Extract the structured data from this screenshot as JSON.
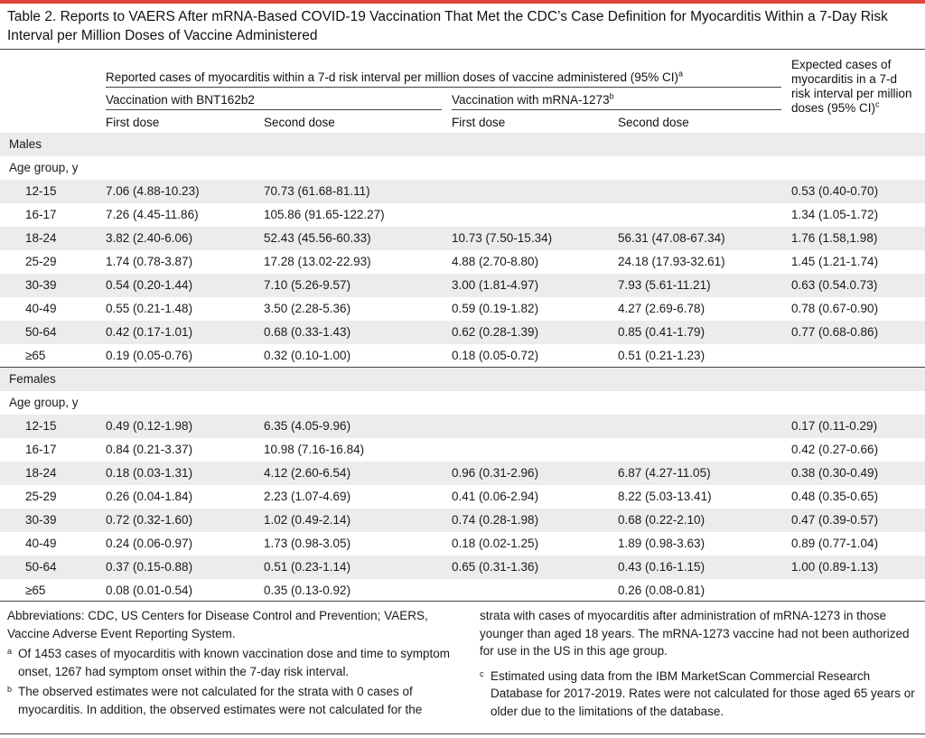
{
  "title": "Table 2. Reports to VAERS After mRNA-Based COVID-19 Vaccination That Met the CDC’s Case Definition for Myocarditis Within a 7-Day Risk Interval per Million Doses of Vaccine Administered",
  "header": {
    "reported_label": "Reported cases of myocarditis within a 7-d risk interval per million doses of vaccine administered (95% CI)",
    "reported_mark": "a",
    "bnt_label": "Vaccination with BNT162b2",
    "mrna_label": "Vaccination with mRNA-1273",
    "mrna_mark": "b",
    "first_dose": "First dose",
    "second_dose": "Second dose",
    "expected_label": "Expected cases of myocarditis in a 7-d risk interval per million doses (95% CI)",
    "expected_mark": "c"
  },
  "sections": [
    {
      "label": "Males",
      "sub": "Age group, y",
      "rows": [
        {
          "age": "12-15",
          "bnt1": "7.06 (4.88-10.23)",
          "bnt2": "70.73 (61.68-81.11)",
          "m1": "",
          "m2": "",
          "exp": "0.53 (0.40-0.70)"
        },
        {
          "age": "16-17",
          "bnt1": "7.26 (4.45-11.86)",
          "bnt2": "105.86 (91.65-122.27)",
          "m1": "",
          "m2": "",
          "exp": "1.34 (1.05-1.72)"
        },
        {
          "age": "18-24",
          "bnt1": "3.82 (2.40-6.06)",
          "bnt2": "52.43 (45.56-60.33)",
          "m1": "10.73 (7.50-15.34)",
          "m2": "56.31 (47.08-67.34)",
          "exp": "1.76 (1.58,1.98)"
        },
        {
          "age": "25-29",
          "bnt1": "1.74 (0.78-3.87)",
          "bnt2": "17.28 (13.02-22.93)",
          "m1": "4.88 (2.70-8.80)",
          "m2": "24.18 (17.93-32.61)",
          "exp": "1.45 (1.21-1.74)"
        },
        {
          "age": "30-39",
          "bnt1": "0.54 (0.20-1.44)",
          "bnt2": "7.10 (5.26-9.57)",
          "m1": "3.00 (1.81-4.97)",
          "m2": "7.93 (5.61-11.21)",
          "exp": "0.63 (0.54.0.73)"
        },
        {
          "age": "40-49",
          "bnt1": "0.55 (0.21-1.48)",
          "bnt2": "3.50 (2.28-5.36)",
          "m1": "0.59 (0.19-1.82)",
          "m2": "4.27 (2.69-6.78)",
          "exp": "0.78 (0.67-0.90)"
        },
        {
          "age": "50-64",
          "bnt1": "0.42 (0.17-1.01)",
          "bnt2": "0.68 (0.33-1.43)",
          "m1": "0.62 (0.28-1.39)",
          "m2": "0.85 (0.41-1.79)",
          "exp": "0.77 (0.68-0.86)"
        },
        {
          "age": "≥65",
          "bnt1": "0.19 (0.05-0.76)",
          "bnt2": "0.32 (0.10-1.00)",
          "m1": "0.18 (0.05-0.72)",
          "m2": "0.51 (0.21-1.23)",
          "exp": ""
        }
      ]
    },
    {
      "label": "Females",
      "sub": "Age group, y",
      "rows": [
        {
          "age": "12-15",
          "bnt1": "0.49 (0.12-1.98)",
          "bnt2": "6.35 (4.05-9.96)",
          "m1": "",
          "m2": "",
          "exp": "0.17 (0.11-0.29)"
        },
        {
          "age": "16-17",
          "bnt1": "0.84 (0.21-3.37)",
          "bnt2": "10.98 (7.16-16.84)",
          "m1": "",
          "m2": "",
          "exp": "0.42 (0.27-0.66)"
        },
        {
          "age": "18-24",
          "bnt1": "0.18 (0.03-1.31)",
          "bnt2": "4.12 (2.60-6.54)",
          "m1": "0.96 (0.31-2.96)",
          "m2": "6.87 (4.27-11.05)",
          "exp": "0.38 (0.30-0.49)"
        },
        {
          "age": "25-29",
          "bnt1": "0.26 (0.04-1.84)",
          "bnt2": "2.23 (1.07-4.69)",
          "m1": "0.41 (0.06-2.94)",
          "m2": "8.22 (5.03-13.41)",
          "exp": "0.48 (0.35-0.65)"
        },
        {
          "age": "30-39",
          "bnt1": "0.72 (0.32-1.60)",
          "bnt2": "1.02 (0.49-2.14)",
          "m1": "0.74 (0.28-1.98)",
          "m2": "0.68 (0.22-2.10)",
          "exp": "0.47 (0.39-0.57)"
        },
        {
          "age": "40-49",
          "bnt1": "0.24 (0.06-0.97)",
          "bnt2": "1.73 (0.98-3.05)",
          "m1": "0.18 (0.02-1.25)",
          "m2": "1.89 (0.98-3.63)",
          "exp": "0.89 (0.77-1.04)"
        },
        {
          "age": "50-64",
          "bnt1": "0.37 (0.15-0.88)",
          "bnt2": "0.51 (0.23-1.14)",
          "m1": "0.65 (0.31-1.36)",
          "m2": "0.43 (0.16-1.15)",
          "exp": "1.00 (0.89-1.13)"
        },
        {
          "age": "≥65",
          "bnt1": "0.08 (0.01-0.54)",
          "bnt2": "0.35 (0.13-0.92)",
          "m1": "",
          "m2": "0.26 (0.08-0.81)",
          "exp": ""
        }
      ]
    }
  ],
  "footnotes": {
    "abbrev": "Abbreviations: CDC, US Centers for Disease Control and Prevention; VAERS, Vaccine Adverse Event Reporting System.",
    "a": {
      "mark": "a",
      "text": "Of 1453 cases of myocarditis with known vaccination dose and time to symptom onset, 1267 had symptom onset within the 7-day risk interval."
    },
    "b": {
      "mark": "b",
      "text": "The observed estimates were not calculated for the strata with 0 cases of myocarditis. In addition, the observed estimates were not calculated for the strata with cases of myocarditis after administration of mRNA-1273 in those younger than aged 18 years. The mRNA-1273 vaccine had not been authorized for use in the US in this age group."
    },
    "c": {
      "mark": "c",
      "text": "Estimated using data from the IBM MarketScan Commercial Research Database for 2017-2019. Rates were not calculated for those aged 65 years or older due to the limitations of the database."
    }
  },
  "colors": {
    "accent": "#e0443a",
    "shade": "#ececec",
    "rule": "#444444"
  }
}
